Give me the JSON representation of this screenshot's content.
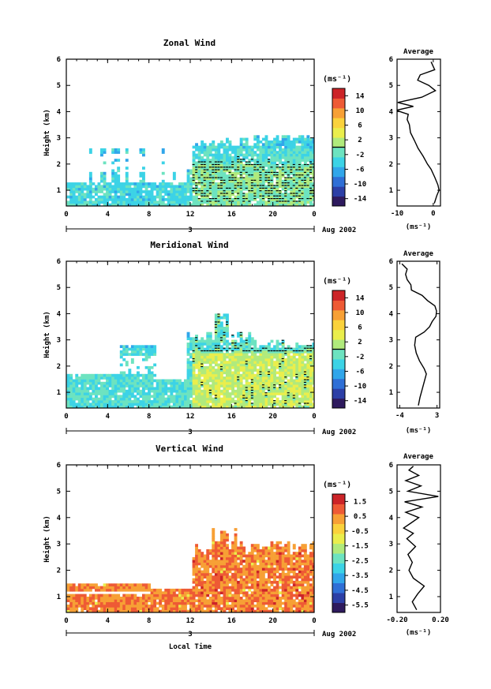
{
  "chart_data": [
    {
      "type": "heatmap",
      "title": "Zonal Wind",
      "ylabel": "Height (km)",
      "xlabel": "",
      "x_ticks": [
        "0",
        "4",
        "8",
        "12",
        "16",
        "20",
        "0"
      ],
      "y_ticks": [
        "1",
        "2",
        "3",
        "4",
        "5",
        "6"
      ],
      "xlim": [
        0,
        24
      ],
      "ylim": [
        0.4,
        6
      ],
      "date_day": "3",
      "date_month_year": "Aug 2002",
      "colorbar": {
        "unit": "(ms⁻¹)",
        "ticks": [
          "14",
          "10",
          "6",
          "2",
          "-2",
          "-6",
          "-10",
          "-14"
        ],
        "range": [
          -16,
          16
        ]
      },
      "profile": {
        "title": "Average",
        "unit": "(ms⁻¹)",
        "x_ticks": [
          "-10",
          "0"
        ],
        "xlim": [
          -10,
          2
        ],
        "height": [
          0.5,
          0.8,
          1.0,
          1.2,
          1.5,
          1.8,
          2.0,
          2.3,
          2.6,
          2.9,
          3.2,
          3.5,
          3.7,
          3.9,
          4.05,
          4.2,
          4.35,
          4.55,
          4.8,
          5.0,
          5.2,
          5.4,
          5.6,
          5.9
        ],
        "value": [
          0.3,
          1.0,
          1.6,
          1.3,
          0.4,
          -0.6,
          -1.6,
          -2.8,
          -4.2,
          -5.2,
          -6.3,
          -6.6,
          -7.2,
          -6.9,
          -10.3,
          -5.5,
          -9.8,
          -3.2,
          0.6,
          -1.2,
          -4.3,
          -3.6,
          0.4,
          -0.6
        ]
      }
    },
    {
      "type": "heatmap",
      "title": "Meridional Wind",
      "ylabel": "Height (km)",
      "xlabel": "",
      "x_ticks": [
        "0",
        "4",
        "8",
        "12",
        "16",
        "20",
        "0"
      ],
      "y_ticks": [
        "1",
        "2",
        "3",
        "4",
        "5",
        "6"
      ],
      "xlim": [
        0,
        24
      ],
      "ylim": [
        0.4,
        6
      ],
      "date_day": "3",
      "date_month_year": "Aug 2002",
      "colorbar": {
        "unit": "(ms⁻¹)",
        "ticks": [
          "14",
          "10",
          "6",
          "2",
          "-2",
          "-6",
          "-10",
          "-14"
        ],
        "range": [
          -16,
          16
        ]
      },
      "profile": {
        "title": "Average",
        "unit": "(ms⁻¹)",
        "x_ticks": [
          "-4",
          "3"
        ],
        "xlim": [
          -4.5,
          3.5
        ],
        "height": [
          0.5,
          0.8,
          1.1,
          1.4,
          1.7,
          1.9,
          2.2,
          2.5,
          2.8,
          3.1,
          3.3,
          3.5,
          3.7,
          3.9,
          4.1,
          4.3,
          4.5,
          4.7,
          4.9,
          5.1,
          5.3,
          5.5,
          5.7,
          5.9
        ],
        "value": [
          -0.5,
          -0.2,
          0.2,
          0.6,
          1.0,
          0.6,
          -0.3,
          -0.9,
          -1.2,
          -1.0,
          0.6,
          1.6,
          2.1,
          2.8,
          2.9,
          2.6,
          1.2,
          0.2,
          -1.8,
          -1.9,
          -2.6,
          -2.9,
          -2.6,
          -3.6
        ]
      }
    },
    {
      "type": "heatmap",
      "title": "Vertical Wind",
      "ylabel": "Height (km)",
      "xlabel": "Local Time",
      "x_ticks": [
        "0",
        "4",
        "8",
        "12",
        "16",
        "20",
        "0"
      ],
      "y_ticks": [
        "1",
        "2",
        "3",
        "4",
        "5",
        "6"
      ],
      "xlim": [
        0,
        24
      ],
      "ylim": [
        0.4,
        6
      ],
      "date_day": "3",
      "date_month_year": "Aug 2002",
      "colorbar": {
        "unit": "(ms⁻¹)",
        "ticks": [
          "1.5",
          "0.5",
          "-0.5",
          "-1.5",
          "-2.5",
          "-3.5",
          "-4.5",
          "-5.5"
        ],
        "range": [
          -6,
          2
        ]
      },
      "profile": {
        "title": "Average",
        "unit": "(ms⁻¹)",
        "x_ticks": [
          "-0.20",
          "0.20"
        ],
        "xlim": [
          -0.2,
          0.2
        ],
        "height": [
          0.5,
          0.8,
          1.1,
          1.4,
          1.7,
          2.0,
          2.3,
          2.6,
          2.9,
          3.2,
          3.4,
          3.6,
          3.8,
          4.0,
          4.2,
          4.4,
          4.6,
          4.8,
          5.0,
          5.2,
          5.4,
          5.6,
          5.8,
          5.95
        ],
        "value": [
          -0.02,
          -0.06,
          -0.01,
          0.05,
          -0.05,
          -0.09,
          -0.06,
          -0.1,
          -0.03,
          -0.11,
          -0.05,
          -0.14,
          -0.07,
          0.0,
          -0.12,
          0.03,
          -0.13,
          0.18,
          -0.1,
          0.02,
          -0.12,
          0.0,
          -0.09,
          -0.05
        ]
      }
    }
  ],
  "colormap": [
    "#2e1a5e",
    "#2c3fa6",
    "#2f6fd6",
    "#31a6ea",
    "#3cd3e6",
    "#6de3c0",
    "#b0ea7c",
    "#eaee4c",
    "#fad23c",
    "#f7a035",
    "#ee5a35",
    "#cc2428"
  ],
  "zero_line_color": "#000000"
}
